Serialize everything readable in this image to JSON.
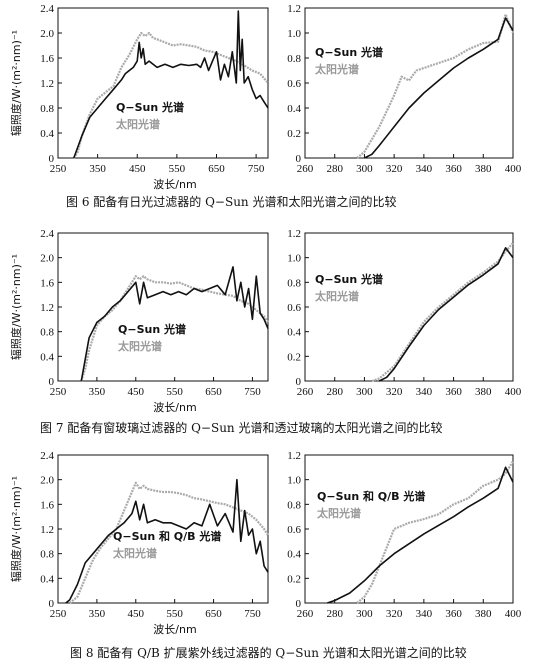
{
  "chart_data": [
    {
      "id": "fig6-left",
      "type": "line",
      "xlabel": "波长/nm",
      "ylabel": "辐照度/W·(m²·nm)⁻¹",
      "xlim": [
        250,
        780
      ],
      "ylim": [
        0,
        2.4
      ],
      "xticks": [
        "250",
        "350",
        "450",
        "550",
        "650",
        "750"
      ],
      "yticks": [
        "0",
        "0.4",
        "0.8",
        "1.2",
        "1.6",
        "2.0",
        "2.4"
      ],
      "legend": [
        "Q−Sun 光谱",
        "太阳光谱"
      ],
      "series": [
        {
          "name": "Q−Sun 光谱",
          "color": "#111111",
          "x": [
            290,
            310,
            330,
            350,
            370,
            390,
            410,
            420,
            430,
            440,
            450,
            455,
            460,
            465,
            470,
            480,
            500,
            520,
            540,
            560,
            580,
            600,
            610,
            620,
            630,
            640,
            650,
            660,
            670,
            680,
            690,
            700,
            705,
            710,
            715,
            720,
            730,
            740,
            750,
            760,
            770,
            780
          ],
          "y": [
            0.0,
            0.35,
            0.65,
            0.8,
            0.95,
            1.1,
            1.25,
            1.35,
            1.4,
            1.45,
            1.55,
            1.85,
            1.6,
            1.75,
            1.5,
            1.55,
            1.45,
            1.5,
            1.45,
            1.5,
            1.48,
            1.5,
            1.45,
            1.6,
            1.4,
            1.55,
            1.7,
            1.25,
            1.5,
            1.3,
            1.7,
            1.2,
            2.35,
            1.4,
            1.9,
            1.2,
            1.3,
            1.1,
            0.95,
            1.0,
            0.9,
            0.8
          ]
        },
        {
          "name": "太阳光谱",
          "color": "#aaaaaa",
          "x": [
            290,
            300,
            310,
            330,
            350,
            370,
            390,
            410,
            430,
            450,
            460,
            470,
            480,
            490,
            500,
            520,
            540,
            560,
            580,
            600,
            620,
            640,
            660,
            680,
            700,
            720,
            740,
            760,
            780
          ],
          "y": [
            0.0,
            0.1,
            0.35,
            0.7,
            0.95,
            1.05,
            1.15,
            1.45,
            1.65,
            1.9,
            2.0,
            1.95,
            2.0,
            1.92,
            1.9,
            1.85,
            1.8,
            1.82,
            1.8,
            1.78,
            1.72,
            1.7,
            1.65,
            1.6,
            1.55,
            1.48,
            1.4,
            1.35,
            1.2
          ]
        }
      ]
    },
    {
      "id": "fig6-right",
      "type": "line",
      "xlim": [
        260,
        400
      ],
      "ylim": [
        0,
        1.2
      ],
      "xticks": [
        "260",
        "280",
        "300",
        "320",
        "340",
        "360",
        "380",
        "400"
      ],
      "yticks": [
        "0",
        "0.2",
        "0.4",
        "0.6",
        "0.8",
        "1.0",
        "1.2"
      ],
      "legend": [
        "Q−Sun 光谱",
        "太阳光谱"
      ],
      "series": [
        {
          "name": "Q−Sun 光谱",
          "color": "#111111",
          "x": [
            300,
            305,
            310,
            320,
            330,
            340,
            350,
            360,
            370,
            380,
            390,
            395,
            400
          ],
          "y": [
            0.0,
            0.03,
            0.1,
            0.25,
            0.4,
            0.52,
            0.62,
            0.72,
            0.8,
            0.87,
            0.95,
            1.12,
            1.02
          ]
        },
        {
          "name": "太阳光谱",
          "color": "#aaaaaa",
          "x": [
            295,
            300,
            305,
            310,
            320,
            325,
            330,
            335,
            340,
            350,
            360,
            370,
            380,
            390,
            395,
            400
          ],
          "y": [
            0.0,
            0.05,
            0.15,
            0.25,
            0.5,
            0.65,
            0.62,
            0.7,
            0.72,
            0.76,
            0.8,
            0.87,
            0.92,
            0.93,
            1.15,
            1.0
          ]
        }
      ]
    },
    {
      "id": "fig7-left",
      "type": "line",
      "xlabel": "波长/nm",
      "ylabel": "辐照度/W·(m²·nm)⁻¹",
      "xlim": [
        250,
        790
      ],
      "ylim": [
        0,
        2.4
      ],
      "xticks": [
        "250",
        "350",
        "450",
        "550",
        "650",
        "750"
      ],
      "yticks": [
        "0",
        "0.4",
        "0.8",
        "1.2",
        "1.6",
        "2.0",
        "2.4"
      ],
      "legend": [
        "Q−Sun 光谱",
        "太阳光谱"
      ],
      "series": [
        {
          "name": "Q−Sun 光谱",
          "color": "#111111",
          "x": [
            310,
            320,
            330,
            350,
            370,
            390,
            410,
            430,
            450,
            460,
            470,
            480,
            500,
            520,
            540,
            560,
            580,
            600,
            620,
            640,
            660,
            680,
            700,
            710,
            720,
            730,
            740,
            750,
            760,
            770,
            780,
            790
          ],
          "y": [
            0.0,
            0.35,
            0.7,
            0.95,
            1.05,
            1.2,
            1.3,
            1.45,
            1.6,
            1.25,
            1.6,
            1.35,
            1.4,
            1.45,
            1.4,
            1.45,
            1.4,
            1.5,
            1.45,
            1.5,
            1.55,
            1.4,
            1.85,
            1.3,
            1.6,
            1.2,
            1.5,
            1.0,
            1.7,
            1.1,
            1.0,
            0.85
          ]
        },
        {
          "name": "太阳光谱",
          "color": "#aaaaaa",
          "x": [
            310,
            320,
            330,
            350,
            370,
            390,
            410,
            430,
            450,
            460,
            470,
            480,
            500,
            520,
            540,
            560,
            580,
            600,
            620,
            640,
            660,
            680,
            700,
            720,
            740,
            760,
            780,
            790
          ],
          "y": [
            0.0,
            0.2,
            0.5,
            0.9,
            1.05,
            1.15,
            1.3,
            1.5,
            1.7,
            1.65,
            1.7,
            1.65,
            1.6,
            1.6,
            1.58,
            1.6,
            1.55,
            1.5,
            1.48,
            1.45,
            1.42,
            1.4,
            1.38,
            1.3,
            1.25,
            1.15,
            1.05,
            0.95
          ]
        }
      ]
    },
    {
      "id": "fig7-right",
      "type": "line",
      "xlim": [
        260,
        400
      ],
      "ylim": [
        0,
        1.2
      ],
      "xticks": [
        "260",
        "280",
        "300",
        "320",
        "340",
        "360",
        "380",
        "400"
      ],
      "yticks": [
        "0",
        "0.2",
        "0.4",
        "0.6",
        "0.8",
        "1.0",
        "1.2"
      ],
      "legend": [
        "Q−Sun 光谱",
        "太阳光谱"
      ],
      "series": [
        {
          "name": "Q−Sun 光谱",
          "color": "#111111",
          "x": [
            310,
            315,
            320,
            330,
            340,
            350,
            360,
            370,
            380,
            390,
            395,
            400
          ],
          "y": [
            0.0,
            0.03,
            0.1,
            0.28,
            0.45,
            0.58,
            0.68,
            0.78,
            0.86,
            0.95,
            1.08,
            1.0
          ]
        },
        {
          "name": "太阳光谱",
          "color": "#aaaaaa",
          "x": [
            305,
            310,
            320,
            330,
            340,
            350,
            360,
            370,
            380,
            390,
            395,
            400
          ],
          "y": [
            0.0,
            0.02,
            0.12,
            0.3,
            0.48,
            0.6,
            0.7,
            0.8,
            0.88,
            0.97,
            1.05,
            1.12
          ]
        }
      ]
    },
    {
      "id": "fig8-left",
      "type": "line",
      "xlabel": "波长/nm",
      "ylabel": "辐照度/W·(m²·nm)⁻¹",
      "xlim": [
        250,
        790
      ],
      "ylim": [
        0,
        2.4
      ],
      "xticks": [
        "250",
        "350",
        "450",
        "550",
        "650",
        "750"
      ],
      "yticks": [
        "0",
        "0.4",
        "0.8",
        "1.2",
        "1.6",
        "2.0",
        "2.4"
      ],
      "legend": [
        "Q−Sun 和 Q/B 光谱",
        "太阳光谱"
      ],
      "series": [
        {
          "name": "Q−Sun 和 Q/B 光谱",
          "color": "#111111",
          "x": [
            270,
            280,
            300,
            320,
            340,
            360,
            380,
            400,
            420,
            440,
            450,
            460,
            470,
            480,
            500,
            520,
            540,
            560,
            580,
            600,
            620,
            640,
            660,
            680,
            700,
            710,
            720,
            730,
            740,
            750,
            760,
            770,
            780,
            790
          ],
          "y": [
            0.0,
            0.05,
            0.3,
            0.65,
            0.8,
            0.95,
            1.1,
            1.2,
            1.3,
            1.45,
            1.65,
            1.35,
            1.6,
            1.3,
            1.35,
            1.3,
            1.3,
            1.25,
            1.2,
            1.3,
            1.25,
            1.6,
            1.25,
            1.45,
            1.15,
            2.0,
            1.0,
            1.5,
            1.1,
            1.2,
            0.8,
            1.0,
            0.6,
            0.5
          ]
        },
        {
          "name": "太阳光谱",
          "color": "#aaaaaa",
          "x": [
            280,
            300,
            320,
            340,
            360,
            380,
            400,
            420,
            440,
            450,
            460,
            470,
            480,
            500,
            520,
            540,
            560,
            580,
            600,
            620,
            640,
            660,
            680,
            700,
            720,
            740,
            760,
            780,
            790
          ],
          "y": [
            0.0,
            0.1,
            0.4,
            0.7,
            0.9,
            1.05,
            1.2,
            1.5,
            1.8,
            1.95,
            1.85,
            1.9,
            1.85,
            1.82,
            1.8,
            1.8,
            1.78,
            1.75,
            1.7,
            1.68,
            1.65,
            1.62,
            1.6,
            1.55,
            1.5,
            1.45,
            1.35,
            1.2,
            1.1
          ]
        }
      ]
    },
    {
      "id": "fig8-right",
      "type": "line",
      "xlim": [
        260,
        400
      ],
      "ylim": [
        0,
        1.2
      ],
      "xticks": [
        "260",
        "280",
        "300",
        "320",
        "340",
        "360",
        "380",
        "400"
      ],
      "yticks": [
        "0",
        "0.2",
        "0.4",
        "0.6",
        "0.8",
        "1.0",
        "1.2"
      ],
      "legend": [
        "Q−Sun 和 Q/B 光谱",
        "太阳光谱"
      ],
      "series": [
        {
          "name": "Q−Sun 和 Q/B 光谱",
          "color": "#111111",
          "x": [
            275,
            280,
            290,
            300,
            310,
            320,
            330,
            340,
            350,
            360,
            370,
            380,
            390,
            395,
            400
          ],
          "y": [
            0.0,
            0.02,
            0.08,
            0.18,
            0.3,
            0.4,
            0.48,
            0.56,
            0.63,
            0.7,
            0.78,
            0.85,
            0.93,
            1.1,
            0.98
          ]
        },
        {
          "name": "太阳光谱",
          "color": "#aaaaaa",
          "x": [
            295,
            300,
            305,
            310,
            315,
            320,
            330,
            340,
            350,
            360,
            370,
            380,
            390,
            395,
            400
          ],
          "y": [
            0.0,
            0.05,
            0.15,
            0.3,
            0.45,
            0.6,
            0.65,
            0.68,
            0.72,
            0.8,
            0.85,
            0.95,
            1.0,
            1.05,
            1.15
          ]
        }
      ]
    }
  ],
  "captions": [
    "图 6   配备有日光过滤器的 Q−Sun 光谱和太阳光谱之间的比较",
    "图 7   配备有窗玻璃过滤器的 Q−Sun 光谱和透过玻璃的太阳光谱之间的比较",
    "图 8   配备有 Q/B 扩展紫外线过滤器的 Q−Sun 光谱和太阳光谱之间的比较"
  ]
}
